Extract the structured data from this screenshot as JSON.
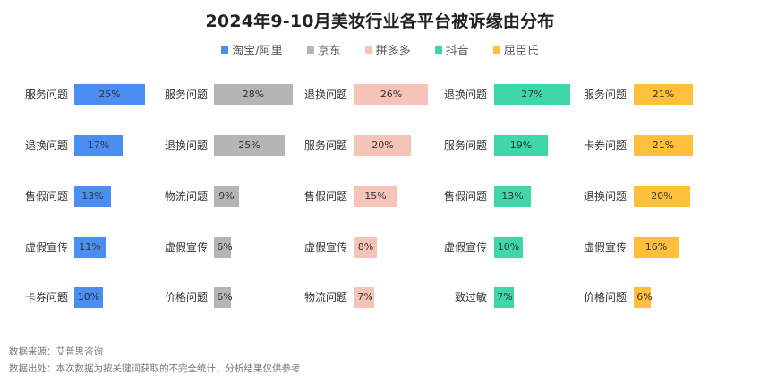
{
  "title": "2024年9-10月美妆行业各平台被诉缘由分布",
  "legend": [
    {
      "name": "淘宝/阿里",
      "color": "#4a8ef2"
    },
    {
      "name": "京东",
      "color": "#b5b5b5"
    },
    {
      "name": "拼多多",
      "color": "#f5c3b8"
    },
    {
      "name": "抖音",
      "color": "#3fd7a9"
    },
    {
      "name": "屈臣氏",
      "color": "#ffbf3a"
    }
  ],
  "footer": {
    "source": "数据来源：艾普思咨询",
    "note": "数据出处：本次数据为按关键词获取的不完全统计，分析结果仅供参考"
  },
  "chart_data": [
    {
      "type": "bar",
      "orientation": "horizontal",
      "series_name": "淘宝/阿里",
      "color": "#4a8ef2",
      "categories": [
        "服务问题",
        "退换问题",
        "售假问题",
        "虚假宣传",
        "卡券问题"
      ],
      "values": [
        25,
        17,
        13,
        11,
        10
      ],
      "labels": [
        "25%",
        "17%",
        "13%",
        "11%",
        "10%"
      ]
    },
    {
      "type": "bar",
      "orientation": "horizontal",
      "series_name": "京东",
      "color": "#b5b5b5",
      "categories": [
        "服务问题",
        "退换问题",
        "物流问题",
        "虚假宣传",
        "价格问题"
      ],
      "values": [
        28,
        25,
        9,
        6,
        6
      ],
      "labels": [
        "28%",
        "25%",
        "9%",
        "6%",
        "6%"
      ]
    },
    {
      "type": "bar",
      "orientation": "horizontal",
      "series_name": "拼多多",
      "color": "#f5c3b8",
      "categories": [
        "退换问题",
        "服务问题",
        "售假问题",
        "虚假宣传",
        "物流问题"
      ],
      "values": [
        26,
        20,
        15,
        8,
        7
      ],
      "labels": [
        "26%",
        "20%",
        "15%",
        "8%",
        "7%"
      ]
    },
    {
      "type": "bar",
      "orientation": "horizontal",
      "series_name": "抖音",
      "color": "#3fd7a9",
      "categories": [
        "退换问题",
        "服务问题",
        "售假问题",
        "虚假宣传",
        "致过敏"
      ],
      "values": [
        27,
        19,
        13,
        10,
        7
      ],
      "labels": [
        "27%",
        "19%",
        "13%",
        "10%",
        "7%"
      ]
    },
    {
      "type": "bar",
      "orientation": "horizontal",
      "series_name": "屈臣氏",
      "color": "#ffbf3a",
      "categories": [
        "服务问题",
        "卡券问题",
        "退换问题",
        "虚假宣传",
        "价格问题"
      ],
      "values": [
        21,
        21,
        20,
        16,
        6
      ],
      "labels": [
        "21%",
        "21%",
        "20%",
        "16%",
        "6%"
      ]
    }
  ]
}
